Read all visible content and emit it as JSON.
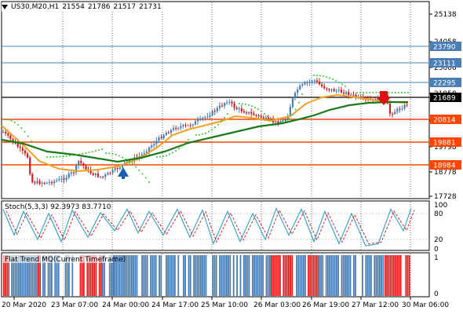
{
  "window": {
    "symbol": "US30,M20,H1",
    "ohlc": [
      "21554",
      "21786",
      "21517",
      "21731"
    ],
    "collapse_icon": "triangle-down-icon"
  },
  "colors": {
    "background": "#ffffff",
    "grid": "#000000",
    "bull_candle": "#4a7fb5",
    "bear_candle": "#cc2222",
    "ma_fast": "#f0a020",
    "ma_slow": "#1a7a1a",
    "psar": "#22cc22",
    "blue_level": "#4a7fb5",
    "orange_level": "#ff4500",
    "current_price": "#000000",
    "stoch_main": "#2aa0c8",
    "stoch_signal": "#cc2222",
    "hist_up": "#4a7fb5",
    "hist_down": "#ee1c1c"
  },
  "price_axis": {
    "ticks": [
      "25138",
      "24058",
      "23006",
      "21958",
      "20878",
      "19798",
      "18778",
      "17728"
    ],
    "labels": [
      {
        "text": "23790",
        "kind": "blue"
      },
      {
        "text": "23111",
        "kind": "blue"
      },
      {
        "text": "22295",
        "kind": "blue"
      },
      {
        "text": "21689",
        "kind": "current"
      },
      {
        "text": "20814",
        "kind": "orange"
      },
      {
        "text": "19881",
        "kind": "orange"
      },
      {
        "text": "18984",
        "kind": "orange"
      }
    ]
  },
  "stoch": {
    "label": "Stoch(5,3,3) 92.3973 83.7710",
    "levels": [
      "100",
      "80",
      "20",
      "0"
    ]
  },
  "hist": {
    "label": "Flat Trend MQ(Current Timeframe)",
    "levels": [
      "1",
      "0"
    ]
  },
  "time_axis": [
    "20 Mar 2020",
    "23 Mar 07:00",
    "24 Mar 00:00",
    "24 Mar 17:00",
    "25 Mar 10:00",
    "26 Mar 03:00",
    "26 Mar 19:00",
    "27 Mar 12:00",
    "30 Mar 06:00"
  ],
  "markers": {
    "buy": "arrow-up-icon",
    "sell": "arrow-down-icon"
  }
}
